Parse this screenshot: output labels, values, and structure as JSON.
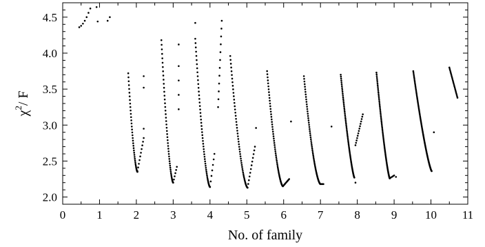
{
  "chart_data": {
    "type": "scatter",
    "title": "",
    "xlabel": "No. of family",
    "ylabel_main": "χ",
    "ylabel_sup": "2",
    "ylabel_rest": "/ F",
    "xlim": [
      0,
      11
    ],
    "ylim": [
      1.9,
      4.7
    ],
    "x_ticks": [
      0,
      1,
      2,
      3,
      4,
      5,
      6,
      7,
      8,
      9,
      10,
      11
    ],
    "y_ticks": [
      2.0,
      2.5,
      3.0,
      3.5,
      4.0,
      4.5
    ],
    "y_tick_labels": [
      "2.0",
      "2.5",
      "3.0",
      "3.5",
      "4.0",
      "4.5"
    ],
    "grid": false,
    "point_color": "#000000",
    "series": [
      {
        "segments": [
          {
            "points": [
              [
                0.45,
                4.36
              ],
              [
                0.5,
                4.38
              ],
              [
                0.55,
                4.41
              ],
              [
                0.6,
                4.45
              ],
              [
                0.65,
                4.5
              ],
              [
                0.7,
                4.56
              ],
              [
                0.75,
                4.62
              ],
              [
                0.92,
                4.64
              ],
              [
                0.95,
                4.44
              ]
            ],
            "n": 0
          },
          {
            "points": [
              [
                1.22,
                4.45
              ],
              [
                1.28,
                4.5
              ]
            ],
            "n": 0
          },
          {
            "x0": 1.78,
            "x1": 2.03,
            "y0": 3.72,
            "y1": 2.35,
            "n": 40,
            "curve": 1.6
          },
          {
            "x0": 2.03,
            "x1": 2.2,
            "y0": 2.36,
            "y1": 2.82,
            "n": 10,
            "curve": 1.0
          },
          {
            "points": [
              [
                2.2,
                3.52
              ],
              [
                2.2,
                3.68
              ],
              [
                2.2,
                2.95
              ]
            ],
            "n": 0
          },
          {
            "x0": 2.68,
            "x1": 3.0,
            "y0": 4.18,
            "y1": 2.2,
            "n": 50,
            "curve": 1.6
          },
          {
            "x0": 3.0,
            "x1": 3.1,
            "y0": 2.2,
            "y1": 2.42,
            "n": 6,
            "curve": 1.0
          },
          {
            "points": [
              [
                3.15,
                3.22
              ],
              [
                3.15,
                3.42
              ],
              [
                3.15,
                3.62
              ],
              [
                3.15,
                3.82
              ],
              [
                3.15,
                4.12
              ]
            ],
            "n": 0
          },
          {
            "x0": 3.6,
            "x1": 4.0,
            "y0": 4.2,
            "y1": 2.14,
            "n": 55,
            "curve": 1.6
          },
          {
            "x0": 4.0,
            "x1": 4.12,
            "y0": 2.14,
            "y1": 2.6,
            "n": 7,
            "curve": 1.0
          },
          {
            "points": [
              [
                3.6,
                4.42
              ]
            ],
            "n": 0
          },
          {
            "x0": 4.22,
            "x1": 4.32,
            "y0": 3.25,
            "y1": 4.45,
            "n": 12,
            "curve": 1.0
          },
          {
            "x0": 4.55,
            "x1": 5.02,
            "y0": 3.96,
            "y1": 2.13,
            "n": 55,
            "curve": 1.6
          },
          {
            "x0": 5.02,
            "x1": 5.22,
            "y0": 2.13,
            "y1": 2.7,
            "n": 12,
            "curve": 1.0
          },
          {
            "points": [
              [
                5.25,
                2.96
              ]
            ],
            "n": 0
          },
          {
            "x0": 5.55,
            "x1": 5.98,
            "y0": 3.75,
            "y1": 2.15,
            "n": 60,
            "curve": 1.6
          },
          {
            "x0": 5.98,
            "x1": 6.15,
            "y0": 2.15,
            "y1": 2.25,
            "n": 10,
            "curve": 1.0
          },
          {
            "points": [
              [
                6.2,
                3.05
              ]
            ],
            "n": 0
          },
          {
            "x0": 6.55,
            "x1": 7.0,
            "y0": 3.68,
            "y1": 2.18,
            "n": 65,
            "curve": 1.6
          },
          {
            "x0": 7.0,
            "x1": 7.08,
            "y0": 2.18,
            "y1": 2.18,
            "n": 5,
            "curve": 1.0
          },
          {
            "points": [
              [
                7.3,
                2.98
              ]
            ],
            "n": 0
          },
          {
            "x0": 7.55,
            "x1": 7.92,
            "y0": 3.7,
            "y1": 2.27,
            "n": 70,
            "curve": 1.3
          },
          {
            "points": [
              [
                7.95,
                2.2
              ]
            ],
            "n": 0
          },
          {
            "x0": 7.95,
            "x1": 8.15,
            "y0": 2.72,
            "y1": 3.15,
            "n": 14,
            "curve": 1.0
          },
          {
            "x0": 8.52,
            "x1": 8.88,
            "y0": 3.73,
            "y1": 2.26,
            "n": 75,
            "curve": 1.3
          },
          {
            "x0": 8.88,
            "x1": 9.0,
            "y0": 2.26,
            "y1": 2.3,
            "n": 5,
            "curve": 1.0
          },
          {
            "points": [
              [
                9.05,
                2.28
              ]
            ],
            "n": 0
          },
          {
            "x0": 9.52,
            "x1": 10.02,
            "y0": 3.75,
            "y1": 2.36,
            "n": 85,
            "curve": 1.3
          },
          {
            "points": [
              [
                10.08,
                2.9
              ]
            ],
            "n": 0
          },
          {
            "x0": 10.5,
            "x1": 10.72,
            "y0": 3.8,
            "y1": 3.38,
            "n": 22,
            "curve": 1.0
          }
        ]
      }
    ]
  }
}
